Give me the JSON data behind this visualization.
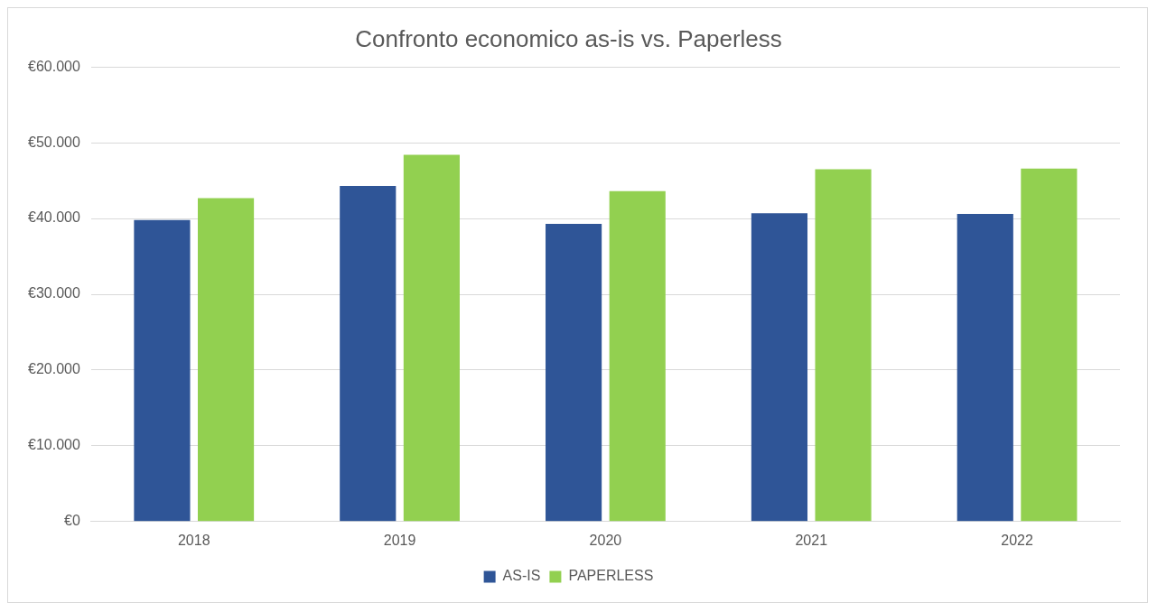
{
  "chart_data": {
    "type": "bar",
    "title": "Confronto economico as-is vs. Paperless",
    "categories": [
      "2018",
      "2019",
      "2020",
      "2021",
      "2022"
    ],
    "series": [
      {
        "name": "AS-IS",
        "color": "#2f5597",
        "values": [
          39800,
          44300,
          39300,
          40700,
          40600
        ]
      },
      {
        "name": "PAPERLESS",
        "color": "#92d050",
        "values": [
          42700,
          48400,
          43600,
          46500,
          46600
        ]
      }
    ],
    "ylim": [
      0,
      60000
    ],
    "yticks": [
      {
        "value": 0,
        "label": "€0"
      },
      {
        "value": 10000,
        "label": "€10.000"
      },
      {
        "value": 20000,
        "label": "€20.000"
      },
      {
        "value": 30000,
        "label": "€30.000"
      },
      {
        "value": 40000,
        "label": "€40.000"
      },
      {
        "value": 50000,
        "label": "€50.000"
      },
      {
        "value": 60000,
        "label": "€60.000"
      }
    ],
    "grid": "y",
    "legend": "bottom"
  }
}
